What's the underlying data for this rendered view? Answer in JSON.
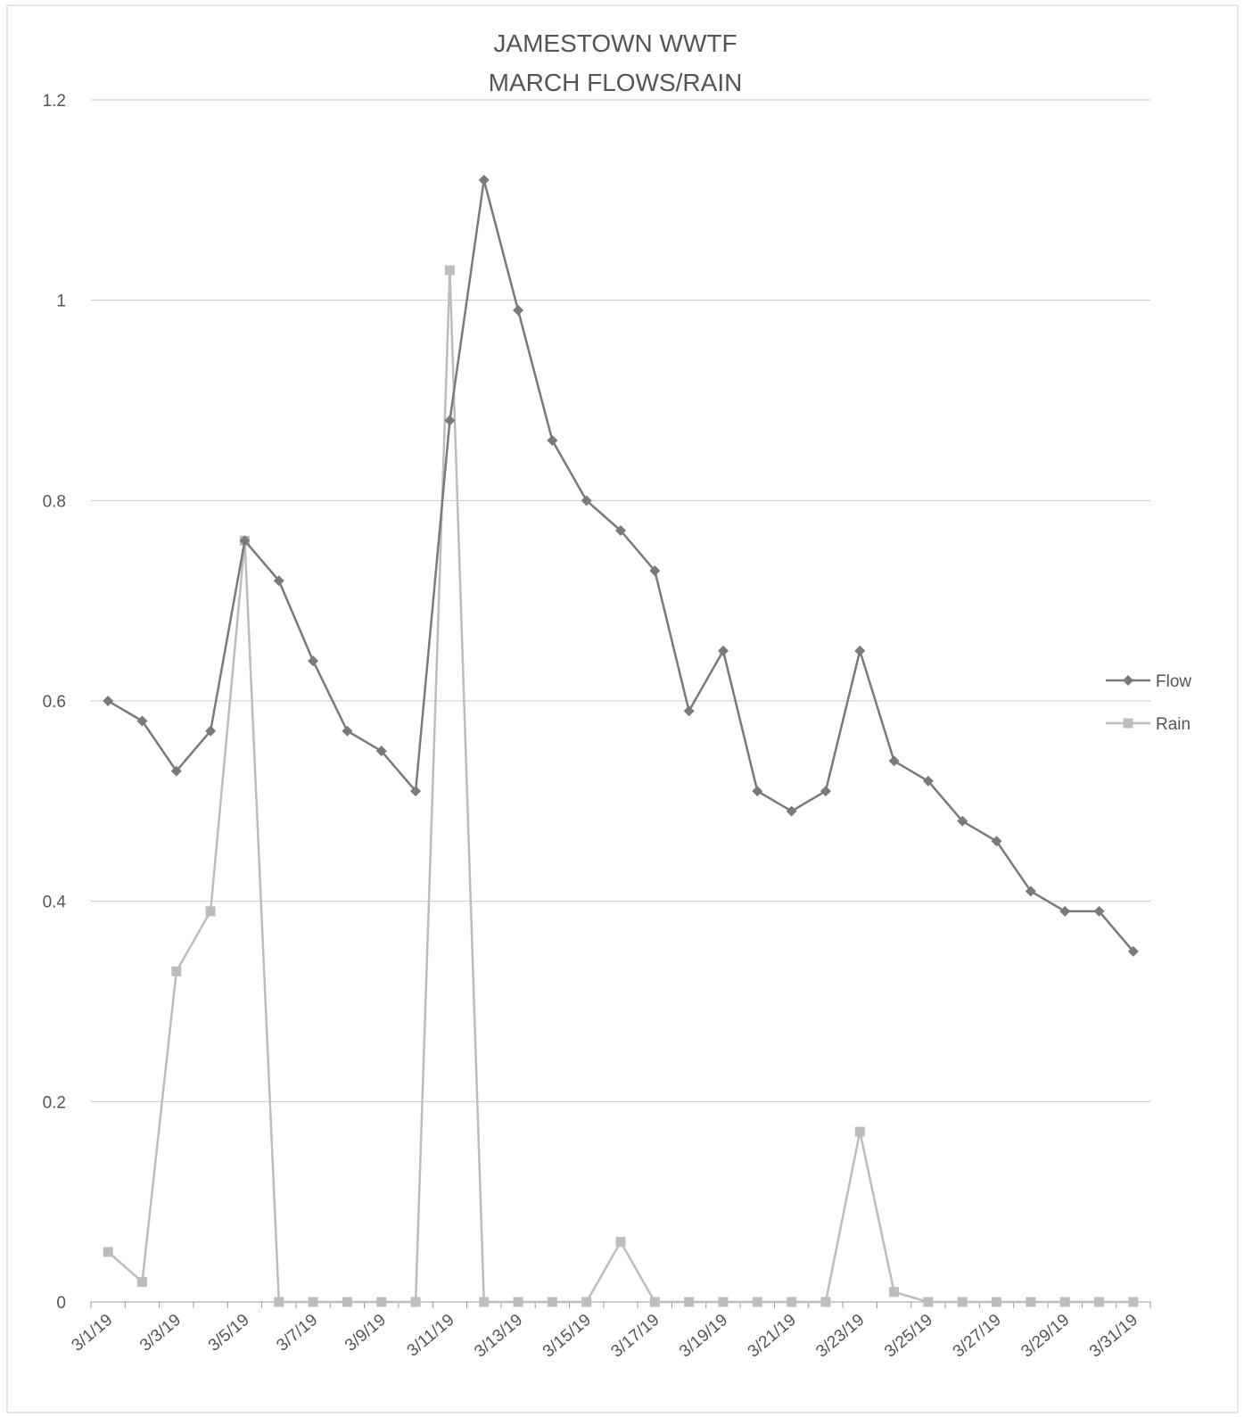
{
  "chart_data": {
    "type": "line",
    "title_lines": [
      "JAMESTOWN WWTF",
      "MARCH FLOWS/RAIN"
    ],
    "xlabel": "",
    "ylabel": "",
    "ylim": [
      0,
      1.2
    ],
    "y_ticks": [
      "0",
      "0.2",
      "0.4",
      "0.6",
      "0.8",
      "1",
      "1.2"
    ],
    "grid": true,
    "legend_position": "right",
    "x": [
      "3/1/19",
      "3/2/19",
      "3/3/19",
      "3/4/19",
      "3/5/19",
      "3/6/19",
      "3/7/19",
      "3/8/19",
      "3/9/19",
      "3/10/19",
      "3/11/19",
      "3/12/19",
      "3/13/19",
      "3/14/19",
      "3/15/19",
      "3/16/19",
      "3/17/19",
      "3/18/19",
      "3/19/19",
      "3/20/19",
      "3/21/19",
      "3/22/19",
      "3/23/19",
      "3/24/19",
      "3/25/19",
      "3/26/19",
      "3/27/19",
      "3/28/19",
      "3/29/19",
      "3/30/19",
      "3/31/19"
    ],
    "x_tick_labels": [
      "3/1/19",
      "3/3/19",
      "3/5/19",
      "3/7/19",
      "3/9/19",
      "3/11/19",
      "3/13/19",
      "3/15/19",
      "3/17/19",
      "3/19/19",
      "3/21/19",
      "3/23/19",
      "3/25/19",
      "3/27/19",
      "3/29/19",
      "3/31/19"
    ],
    "series": [
      {
        "name": "Flow",
        "color": "#7a7a7a",
        "marker": "diamond",
        "values": [
          0.6,
          0.58,
          0.53,
          0.57,
          0.76,
          0.72,
          0.64,
          0.57,
          0.55,
          0.51,
          0.88,
          1.12,
          0.99,
          0.86,
          0.8,
          0.77,
          0.73,
          0.59,
          0.65,
          0.51,
          0.49,
          0.51,
          0.65,
          0.54,
          0.52,
          0.48,
          0.46,
          0.41,
          0.39,
          0.39,
          0.35
        ]
      },
      {
        "name": "Rain",
        "color": "#bdbdbd",
        "marker": "square",
        "values": [
          0.05,
          0.02,
          0.33,
          0.39,
          0.76,
          0.0,
          0.0,
          0.0,
          0.0,
          0.0,
          1.03,
          0.0,
          0.0,
          0.0,
          0.0,
          0.06,
          0.0,
          0.0,
          0.0,
          0.0,
          0.0,
          0.0,
          0.17,
          0.01,
          0.0,
          0.0,
          0.0,
          0.0,
          0.0,
          0.0,
          0.0
        ]
      }
    ]
  }
}
